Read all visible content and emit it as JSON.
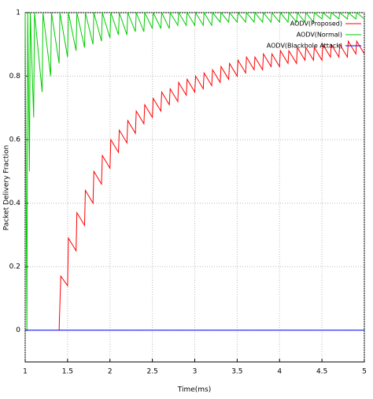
{
  "chart_data": {
    "type": "line",
    "xlabel": "Time(ms)",
    "ylabel": "Packet Delivery Fraction",
    "xlim": [
      1,
      5
    ],
    "ylim": [
      -0.1,
      1
    ],
    "xticks": [
      1,
      1.5,
      2,
      2.5,
      3,
      3.5,
      4,
      4.5,
      5
    ],
    "yticks": [
      0,
      0.2,
      0.4,
      0.6,
      0.8,
      1
    ],
    "grid": true,
    "legend": "top-right",
    "series": [
      {
        "name": "AODV(Proposed)",
        "color": "#ff0000",
        "x": [
          1.4,
          1.42,
          1.5,
          1.51,
          1.6,
          1.61,
          1.7,
          1.71,
          1.8,
          1.81,
          1.9,
          1.91,
          2,
          2.01,
          2.1,
          2.11,
          2.2,
          2.21,
          2.3,
          2.31,
          2.4,
          2.41,
          2.5,
          2.51,
          2.6,
          2.61,
          2.7,
          2.71,
          2.8,
          2.81,
          2.9,
          2.91,
          3,
          3.01,
          3.1,
          3.11,
          3.2,
          3.21,
          3.3,
          3.31,
          3.4,
          3.41,
          3.5,
          3.51,
          3.6,
          3.61,
          3.7,
          3.71,
          3.8,
          3.81,
          3.9,
          3.91,
          4,
          4.01,
          4.1,
          4.11,
          4.2,
          4.21,
          4.3,
          4.31,
          4.4,
          4.41,
          4.5,
          4.51,
          4.6,
          4.61,
          4.7,
          4.71,
          4.8,
          4.81,
          4.9,
          4.91,
          5
        ],
        "values": [
          0,
          0.17,
          0.14,
          0.29,
          0.25,
          0.37,
          0.33,
          0.44,
          0.4,
          0.5,
          0.46,
          0.55,
          0.51,
          0.6,
          0.56,
          0.63,
          0.59,
          0.66,
          0.62,
          0.69,
          0.65,
          0.71,
          0.67,
          0.73,
          0.69,
          0.75,
          0.71,
          0.76,
          0.72,
          0.78,
          0.74,
          0.79,
          0.75,
          0.8,
          0.76,
          0.81,
          0.77,
          0.82,
          0.78,
          0.83,
          0.79,
          0.84,
          0.8,
          0.85,
          0.81,
          0.86,
          0.82,
          0.86,
          0.82,
          0.87,
          0.83,
          0.87,
          0.83,
          0.88,
          0.84,
          0.88,
          0.84,
          0.89,
          0.85,
          0.89,
          0.85,
          0.89,
          0.85,
          0.9,
          0.86,
          0.9,
          0.86,
          0.9,
          0.86,
          0.91,
          0.87,
          0.91,
          0.87
        ]
      },
      {
        "name": "AODV(Normal)",
        "color": "#00cc00",
        "x": [
          1,
          1.02,
          1.03,
          1.05,
          1.06,
          1.1,
          1.11,
          1.2,
          1.21,
          1.3,
          1.31,
          1.4,
          1.41,
          1.5,
          1.51,
          1.6,
          1.61,
          1.7,
          1.71,
          1.8,
          1.81,
          1.9,
          1.91,
          2,
          2.01,
          2.1,
          2.11,
          2.2,
          2.21,
          2.3,
          2.31,
          2.4,
          2.41,
          2.5,
          2.51,
          2.6,
          2.61,
          2.7,
          2.71,
          2.8,
          2.81,
          2.9,
          2.91,
          3,
          3.01,
          3.1,
          3.11,
          3.2,
          3.21,
          3.3,
          3.31,
          3.4,
          3.41,
          3.5,
          3.51,
          3.6,
          3.61,
          3.7,
          3.71,
          3.8,
          3.81,
          3.9,
          3.91,
          4,
          4.01,
          4.1,
          4.11,
          4.2,
          4.21,
          4.3,
          4.31,
          4.4,
          4.41,
          4.5,
          4.51,
          4.6,
          4.61,
          4.7,
          4.71,
          4.8,
          4.81,
          4.9,
          4.91,
          5
        ],
        "values": [
          1,
          0,
          1,
          0.5,
          1,
          0.67,
          1,
          0.75,
          1,
          0.8,
          1,
          0.84,
          1,
          0.86,
          1,
          0.88,
          1,
          0.89,
          1,
          0.9,
          1,
          0.91,
          1,
          0.92,
          1,
          0.93,
          1,
          0.93,
          1,
          0.94,
          1,
          0.94,
          1,
          0.95,
          1,
          0.95,
          1,
          0.95,
          1,
          0.96,
          1,
          0.96,
          1,
          0.96,
          1,
          0.96,
          1,
          0.96,
          1,
          0.97,
          1,
          0.97,
          1,
          0.97,
          1,
          0.97,
          1,
          0.97,
          1,
          0.97,
          1,
          0.97,
          1,
          0.97,
          1,
          0.97,
          1,
          0.97,
          1,
          0.97,
          1,
          0.97,
          1,
          0.98,
          1,
          0.98,
          1,
          0.98,
          1,
          0.98,
          1,
          0.98,
          1,
          0.98
        ]
      },
      {
        "name": "AODV(Blackhole Attack)",
        "color": "#0000ff",
        "x": [
          1,
          5
        ],
        "values": [
          0,
          0
        ]
      }
    ]
  }
}
